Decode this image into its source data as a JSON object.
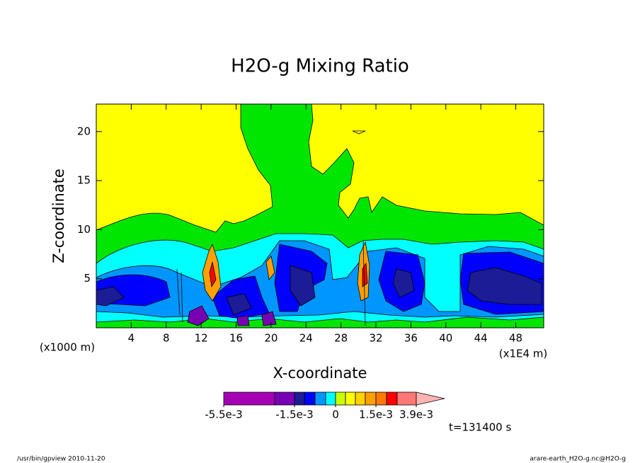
{
  "chart_data": {
    "type": "contour",
    "title": "H2O-g Mixing Ratio",
    "x_label": "X-coordinate",
    "y_label": "Z-coordinate",
    "x_unit_left": "(x1000 m)",
    "x_unit_right": "(x1E4 m)",
    "xlim": [
      0,
      51.2
    ],
    "ylim": [
      0,
      22.8
    ],
    "xticks": [
      4,
      8,
      12,
      16,
      20,
      24,
      28,
      32,
      36,
      40,
      44,
      48
    ],
    "yticks": [
      5,
      10,
      15,
      20
    ],
    "colorbar": {
      "levels": [
        -0.0055,
        -0.0025,
        -0.0015,
        -0.001,
        -0.0005,
        -0.0002,
        0,
        0.0002,
        0.0005,
        0.001,
        0.0015,
        0.002,
        0.0025,
        0.0039
      ],
      "colors": [
        "#a400b4",
        "#7800b4",
        "#1c1c96",
        "#0000ff",
        "#0096ff",
        "#00ffff",
        "#c8ff00",
        "#ffff00",
        "#ffd200",
        "#ffa000",
        "#ff7800",
        "#ff0000",
        "#ff7878"
      ],
      "over_color": "#ffb4b4",
      "ticks": [
        {
          "value": -0.0055,
          "label": "-5.5e-3"
        },
        {
          "value": -0.0015,
          "label": "-1.5e-3"
        },
        0,
        {
          "value": 0.0015,
          "label": "1.5e-3"
        },
        {
          "value": 0.0039,
          "label": "3.9e-3"
        }
      ]
    },
    "time_label": "t=131400 s",
    "footer_left": "/usr/bin/gpview  2010-11-20",
    "footer_right": "arare-earth_H2O-g.nc@H2O-g"
  }
}
